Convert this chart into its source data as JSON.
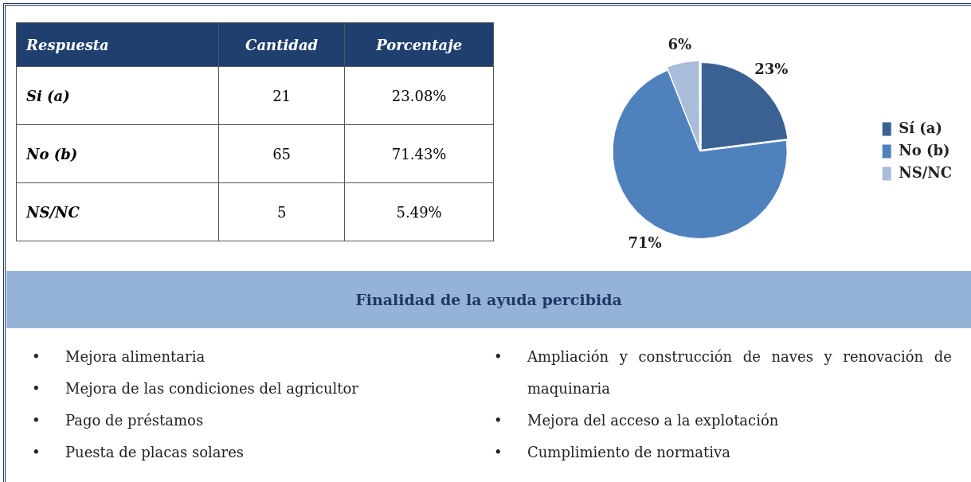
{
  "chart_data": {
    "type": "pie",
    "categories": [
      "Sí (a)",
      "No (b)",
      "NS/NC"
    ],
    "values": [
      23,
      71,
      6
    ],
    "colors": [
      "#3a6191",
      "#4f81bd",
      "#a9bcd9"
    ],
    "value_labels": [
      "23%",
      "71%",
      "6%"
    ],
    "legend": "right",
    "annotations": [
      "Respuesta",
      "Cantidad",
      "Porcentaje",
      "Si (a)",
      "No (b)",
      "NS/NC",
      "21",
      "65",
      "5",
      "23.08%",
      "71.43%",
      "5.49%",
      "•",
      "Finalidad de la ayuda percibida",
      "Mejora alimentaria",
      "Mejora de las condiciones del agricultor",
      "Pago de préstamos",
      "Puesta de placas solares",
      "Ampliación y construcción de naves y renovación de maquinaria",
      "Mejora del acceso a la explotación",
      "Cumplimiento de normativa"
    ]
  }
}
